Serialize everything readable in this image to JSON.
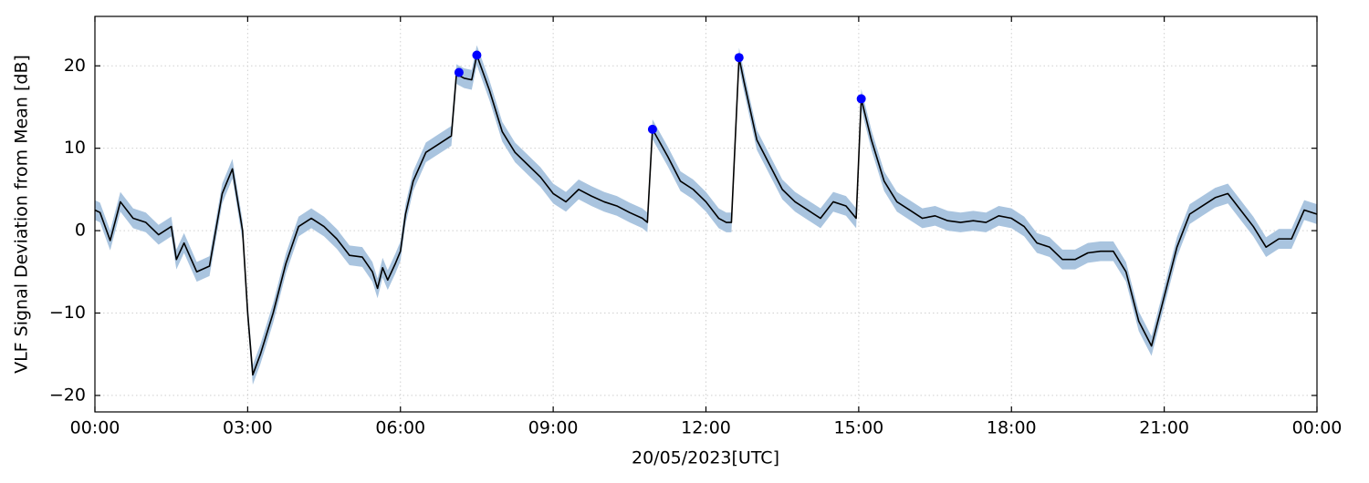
{
  "chart_data": {
    "type": "line",
    "xlabel": "20/05/2023[UTC]",
    "ylabel": "VLF Signal Deviation from Mean [dB]",
    "xlim": [
      0,
      24
    ],
    "ylim": [
      -22,
      26
    ],
    "xticks": [
      {
        "value": 0,
        "label": "00:00"
      },
      {
        "value": 3,
        "label": "03:00"
      },
      {
        "value": 6,
        "label": "06:00"
      },
      {
        "value": 9,
        "label": "09:00"
      },
      {
        "value": 12,
        "label": "12:00"
      },
      {
        "value": 15,
        "label": "15:00"
      },
      {
        "value": 18,
        "label": "18:00"
      },
      {
        "value": 21,
        "label": "21:00"
      },
      {
        "value": 24,
        "label": "00:00"
      }
    ],
    "yticks": [
      {
        "value": -20,
        "label": "−20"
      },
      {
        "value": -10,
        "label": "−10"
      },
      0,
      10,
      20
    ],
    "grid": true,
    "series": [
      {
        "color": "#000000",
        "band_color": "#a9c4df",
        "band_halfwidth": 1.2,
        "x": [
          0,
          0.1,
          0.3,
          0.5,
          0.75,
          1.0,
          1.25,
          1.5,
          1.6,
          1.75,
          2.0,
          2.25,
          2.5,
          2.7,
          2.9,
          3.0,
          3.1,
          3.25,
          3.5,
          3.75,
          4.0,
          4.25,
          4.5,
          4.75,
          5.0,
          5.25,
          5.45,
          5.55,
          5.65,
          5.75,
          5.9,
          6.0,
          6.1,
          6.25,
          6.5,
          6.75,
          7.0,
          7.1,
          7.25,
          7.4,
          7.5,
          7.75,
          8.0,
          8.25,
          8.5,
          8.75,
          9.0,
          9.25,
          9.5,
          9.75,
          10.0,
          10.25,
          10.5,
          10.75,
          10.85,
          10.95,
          11.25,
          11.5,
          11.75,
          12.0,
          12.25,
          12.4,
          12.5,
          12.65,
          12.75,
          13.0,
          13.25,
          13.5,
          13.75,
          14.0,
          14.25,
          14.5,
          14.75,
          14.95,
          15.05,
          15.25,
          15.5,
          15.75,
          16.0,
          16.25,
          16.5,
          16.75,
          17.0,
          17.25,
          17.5,
          17.75,
          18.0,
          18.25,
          18.5,
          18.75,
          19.0,
          19.25,
          19.5,
          19.75,
          20.0,
          20.25,
          20.5,
          20.75,
          21.0,
          21.25,
          21.5,
          21.75,
          22.0,
          22.25,
          22.5,
          22.75,
          23.0,
          23.25,
          23.5,
          23.75,
          24.0
        ],
        "values": [
          2.5,
          2.2,
          -1.2,
          3.5,
          1.5,
          1.0,
          -0.5,
          0.5,
          -3.5,
          -1.5,
          -5,
          -4.3,
          4.5,
          7.5,
          0,
          -10,
          -17.5,
          -15,
          -10,
          -4,
          0.5,
          1.5,
          0.5,
          -1,
          -3,
          -3.2,
          -5,
          -7,
          -4.5,
          -6,
          -4,
          -2.5,
          2,
          6,
          9.5,
          10.5,
          11.5,
          19,
          18.5,
          18.3,
          21.3,
          17,
          12,
          9.5,
          8,
          6.5,
          4.5,
          3.5,
          5,
          4.2,
          3.5,
          3,
          2.2,
          1.5,
          1,
          12.3,
          9,
          6,
          5,
          3.5,
          1.5,
          1,
          1,
          21,
          18,
          11,
          8,
          5,
          3.5,
          2.5,
          1.5,
          3.5,
          3,
          1.5,
          16,
          11,
          6,
          3.5,
          2.5,
          1.5,
          1.8,
          1.2,
          1,
          1.2,
          1,
          1.8,
          1.5,
          0.5,
          -1.5,
          -2,
          -3.5,
          -3.5,
          -2.7,
          -2.5,
          -2.5,
          -5,
          -11,
          -14,
          -8,
          -2,
          2,
          3,
          4,
          4.5,
          2.5,
          0.5,
          -2,
          -1,
          -1,
          2.5,
          2
        ]
      },
      {
        "color": "#0000ff",
        "marker": "o",
        "x": [
          7.15,
          7.5,
          10.95,
          12.65,
          15.05
        ],
        "values": [
          19.2,
          21.3,
          12.3,
          21,
          16
        ]
      }
    ]
  }
}
